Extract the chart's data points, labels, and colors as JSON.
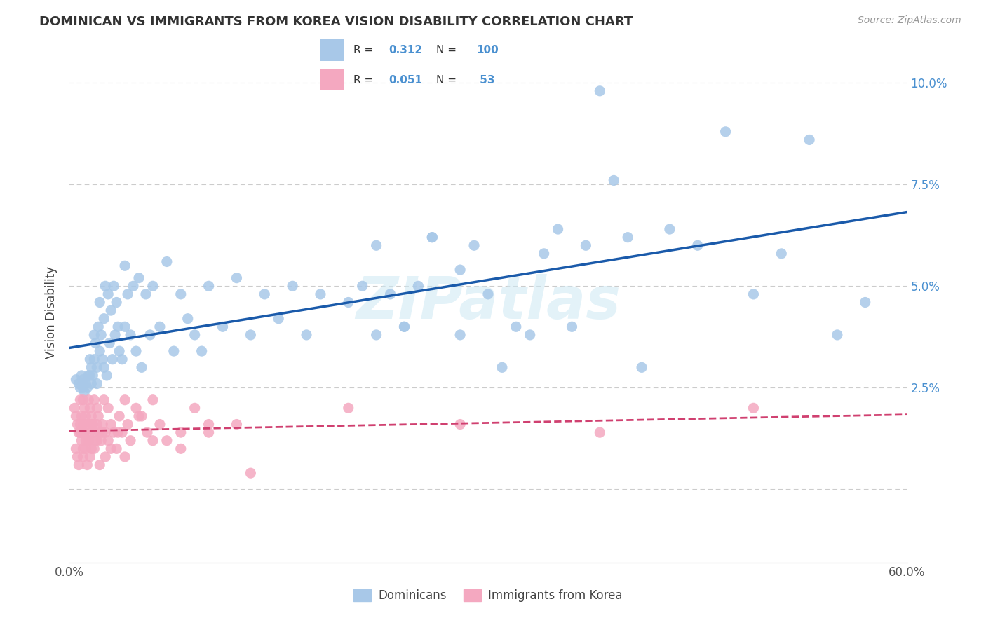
{
  "title": "DOMINICAN VS IMMIGRANTS FROM KOREA VISION DISABILITY CORRELATION CHART",
  "source": "Source: ZipAtlas.com",
  "ylabel": "Vision Disability",
  "xlim": [
    0.0,
    0.6
  ],
  "ylim": [
    -0.018,
    0.105
  ],
  "plot_ylim": [
    0.0,
    0.1
  ],
  "dominican_color": "#a8c8e8",
  "korea_color": "#f4a8c0",
  "dominican_line_color": "#1a5aaa",
  "korea_line_color": "#d04070",
  "blue_text_color": "#4a90d0",
  "legend_R1": "0.312",
  "legend_N1": "100",
  "legend_R2": "0.051",
  "legend_N2": "53",
  "watermark": "ZIPatlas",
  "dominican_x": [
    0.005,
    0.007,
    0.008,
    0.009,
    0.01,
    0.01,
    0.01,
    0.011,
    0.012,
    0.013,
    0.014,
    0.015,
    0.015,
    0.016,
    0.016,
    0.017,
    0.018,
    0.018,
    0.019,
    0.02,
    0.02,
    0.021,
    0.022,
    0.022,
    0.023,
    0.024,
    0.025,
    0.025,
    0.026,
    0.027,
    0.028,
    0.029,
    0.03,
    0.031,
    0.032,
    0.033,
    0.034,
    0.035,
    0.036,
    0.038,
    0.04,
    0.04,
    0.042,
    0.044,
    0.046,
    0.048,
    0.05,
    0.052,
    0.055,
    0.058,
    0.06,
    0.065,
    0.07,
    0.075,
    0.08,
    0.085,
    0.09,
    0.095,
    0.1,
    0.11,
    0.12,
    0.13,
    0.14,
    0.15,
    0.16,
    0.17,
    0.18,
    0.2,
    0.21,
    0.22,
    0.23,
    0.24,
    0.25,
    0.26,
    0.28,
    0.29,
    0.31,
    0.33,
    0.35,
    0.37,
    0.39,
    0.41,
    0.43,
    0.45,
    0.47,
    0.49,
    0.51,
    0.53,
    0.55,
    0.57,
    0.22,
    0.24,
    0.26,
    0.28,
    0.3,
    0.32,
    0.34,
    0.36,
    0.38,
    0.4
  ],
  "dominican_y": [
    0.027,
    0.026,
    0.025,
    0.028,
    0.027,
    0.026,
    0.025,
    0.024,
    0.026,
    0.025,
    0.028,
    0.032,
    0.028,
    0.03,
    0.026,
    0.028,
    0.038,
    0.032,
    0.036,
    0.03,
    0.026,
    0.04,
    0.046,
    0.034,
    0.038,
    0.032,
    0.042,
    0.03,
    0.05,
    0.028,
    0.048,
    0.036,
    0.044,
    0.032,
    0.05,
    0.038,
    0.046,
    0.04,
    0.034,
    0.032,
    0.055,
    0.04,
    0.048,
    0.038,
    0.05,
    0.034,
    0.052,
    0.03,
    0.048,
    0.038,
    0.05,
    0.04,
    0.056,
    0.034,
    0.048,
    0.042,
    0.038,
    0.034,
    0.05,
    0.04,
    0.052,
    0.038,
    0.048,
    0.042,
    0.05,
    0.038,
    0.048,
    0.046,
    0.05,
    0.038,
    0.048,
    0.04,
    0.05,
    0.062,
    0.038,
    0.06,
    0.03,
    0.038,
    0.064,
    0.06,
    0.076,
    0.03,
    0.064,
    0.06,
    0.088,
    0.048,
    0.058,
    0.086,
    0.038,
    0.046,
    0.06,
    0.04,
    0.062,
    0.054,
    0.048,
    0.04,
    0.058,
    0.04,
    0.098,
    0.062
  ],
  "korea_x": [
    0.004,
    0.005,
    0.006,
    0.007,
    0.008,
    0.008,
    0.009,
    0.009,
    0.01,
    0.01,
    0.01,
    0.011,
    0.011,
    0.012,
    0.012,
    0.013,
    0.014,
    0.014,
    0.015,
    0.015,
    0.016,
    0.016,
    0.017,
    0.018,
    0.018,
    0.019,
    0.02,
    0.02,
    0.021,
    0.022,
    0.023,
    0.024,
    0.025,
    0.026,
    0.028,
    0.03,
    0.032,
    0.034,
    0.036,
    0.038,
    0.04,
    0.042,
    0.044,
    0.048,
    0.052,
    0.056,
    0.06,
    0.065,
    0.07,
    0.08,
    0.09,
    0.1,
    0.12
  ],
  "korea_y": [
    0.02,
    0.018,
    0.016,
    0.014,
    0.022,
    0.014,
    0.018,
    0.014,
    0.022,
    0.016,
    0.01,
    0.02,
    0.014,
    0.018,
    0.012,
    0.016,
    0.022,
    0.012,
    0.02,
    0.014,
    0.018,
    0.01,
    0.016,
    0.022,
    0.014,
    0.012,
    0.02,
    0.016,
    0.018,
    0.014,
    0.012,
    0.016,
    0.022,
    0.014,
    0.02,
    0.016,
    0.014,
    0.01,
    0.018,
    0.014,
    0.022,
    0.016,
    0.012,
    0.02,
    0.018,
    0.014,
    0.022,
    0.016,
    0.012,
    0.014,
    0.02,
    0.016,
    0.016
  ],
  "korea_x_extra": [
    0.005,
    0.006,
    0.007,
    0.008,
    0.009,
    0.01,
    0.011,
    0.012,
    0.013,
    0.014,
    0.015,
    0.016,
    0.018,
    0.02,
    0.022,
    0.024,
    0.026,
    0.028,
    0.03,
    0.035,
    0.04,
    0.05,
    0.06,
    0.08,
    0.1,
    0.13,
    0.2,
    0.28,
    0.38,
    0.49
  ],
  "korea_y_extra": [
    0.01,
    0.008,
    0.006,
    0.016,
    0.012,
    0.008,
    0.014,
    0.01,
    0.006,
    0.012,
    0.008,
    0.016,
    0.01,
    0.012,
    0.006,
    0.014,
    0.008,
    0.012,
    0.01,
    0.014,
    0.008,
    0.018,
    0.012,
    0.01,
    0.014,
    0.004,
    0.02,
    0.016,
    0.014,
    0.02
  ]
}
